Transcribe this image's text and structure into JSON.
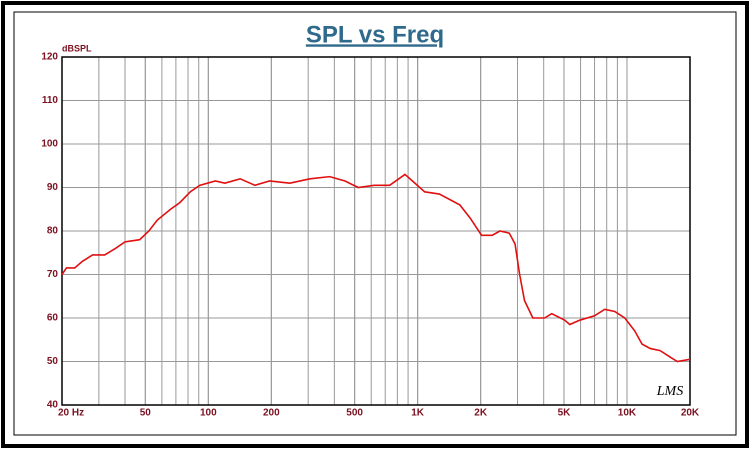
{
  "chart_data": {
    "type": "line",
    "title": "SPL vs Freq",
    "y_label": "dBSPL",
    "annotation": "LMS",
    "x_scale": "log",
    "grid": true,
    "xlim": [
      20,
      20000
    ],
    "ylim": [
      40,
      120
    ],
    "xticks": [
      {
        "value": 20,
        "label": "20 Hz"
      },
      50,
      100,
      200,
      500,
      {
        "value": 1000,
        "label": "1K"
      },
      {
        "value": 2000,
        "label": "2K"
      },
      {
        "value": 5000,
        "label": "5K"
      },
      {
        "value": 10000,
        "label": "10K"
      },
      {
        "value": 20000,
        "label": "20K"
      }
    ],
    "yticks": [
      40,
      50,
      60,
      70,
      80,
      90,
      100,
      110,
      120
    ],
    "x": [
      20,
      21,
      23,
      25,
      28,
      32,
      36,
      40,
      47,
      52,
      57,
      66,
      73,
      82,
      91,
      108,
      120,
      142,
      167,
      196,
      245,
      306,
      380,
      450,
      520,
      620,
      735,
      870,
      970,
      1080,
      1270,
      1590,
      1780,
      2020,
      2270,
      2470,
      2740,
      2920,
      3070,
      3240,
      3550,
      4040,
      4370,
      5040,
      5330,
      5950,
      7000,
      7830,
      8740,
      9760,
      10900,
      11800,
      12900,
      14400,
      16100,
      17400,
      20000
    ],
    "series": [
      {
        "name": "SPL",
        "color": "#e01010",
        "values": [
          70,
          71.5,
          71.5,
          73,
          74.5,
          74.5,
          76,
          77.5,
          78,
          80,
          82.5,
          85,
          86.5,
          89,
          90.5,
          91.5,
          91,
          92,
          90.5,
          91.5,
          91,
          92,
          92.5,
          91.5,
          90,
          90.5,
          90.5,
          93,
          91,
          89,
          88.5,
          86,
          83,
          79,
          79,
          80,
          79.5,
          77,
          70,
          64,
          60,
          60,
          61,
          59.5,
          58.5,
          59.5,
          60.5,
          62,
          61.5,
          60,
          57,
          54,
          53,
          52.5,
          51,
          50,
          50.5
        ]
      }
    ]
  }
}
